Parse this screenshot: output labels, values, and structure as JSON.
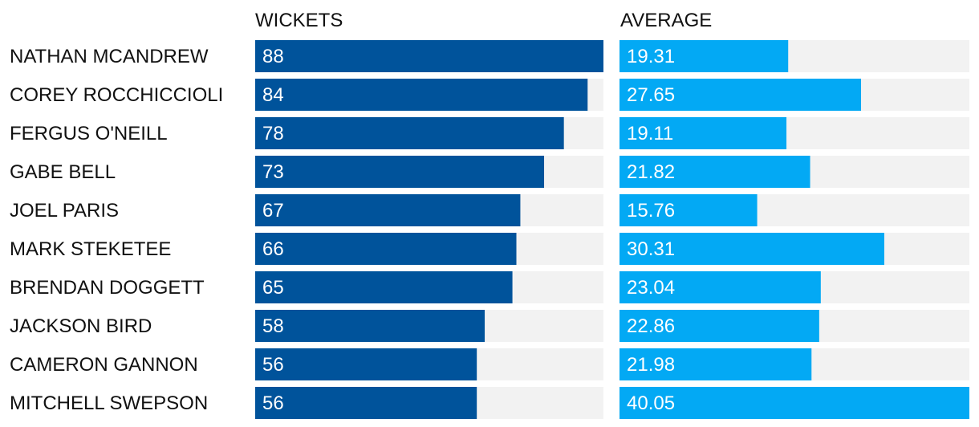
{
  "chart_data": {
    "type": "bar",
    "orientation": "horizontal",
    "categories": [
      "NATHAN MCANDREW",
      "COREY ROCCHICCIOLI",
      "FERGUS O'NEILL",
      "GABE BELL",
      "JOEL PARIS",
      "MARK STEKETEE",
      "BRENDAN DOGGETT",
      "JACKSON BIRD",
      "CAMERON GANNON",
      "MITCHELL SWEPSON"
    ],
    "series": [
      {
        "name": "WICKETS",
        "values": [
          88,
          84,
          78,
          73,
          67,
          66,
          65,
          58,
          56,
          56
        ],
        "labels": [
          "88",
          "84",
          "78",
          "73",
          "67",
          "66",
          "65",
          "58",
          "56",
          "56"
        ],
        "max": 88,
        "color": "#00539b",
        "track_color": "#f2f2f2"
      },
      {
        "name": "AVERAGE",
        "values": [
          19.31,
          27.65,
          19.11,
          21.82,
          15.76,
          30.31,
          23.04,
          22.86,
          21.98,
          40.05
        ],
        "labels": [
          "19.31",
          "27.65",
          "19.11",
          "21.82",
          "15.76",
          "30.31",
          "23.04",
          "22.86",
          "21.98",
          "40.05"
        ],
        "max": 40.05,
        "color": "#03a9f4",
        "track_color": "#f2f2f2"
      }
    ],
    "grid": false,
    "legend": "none"
  }
}
